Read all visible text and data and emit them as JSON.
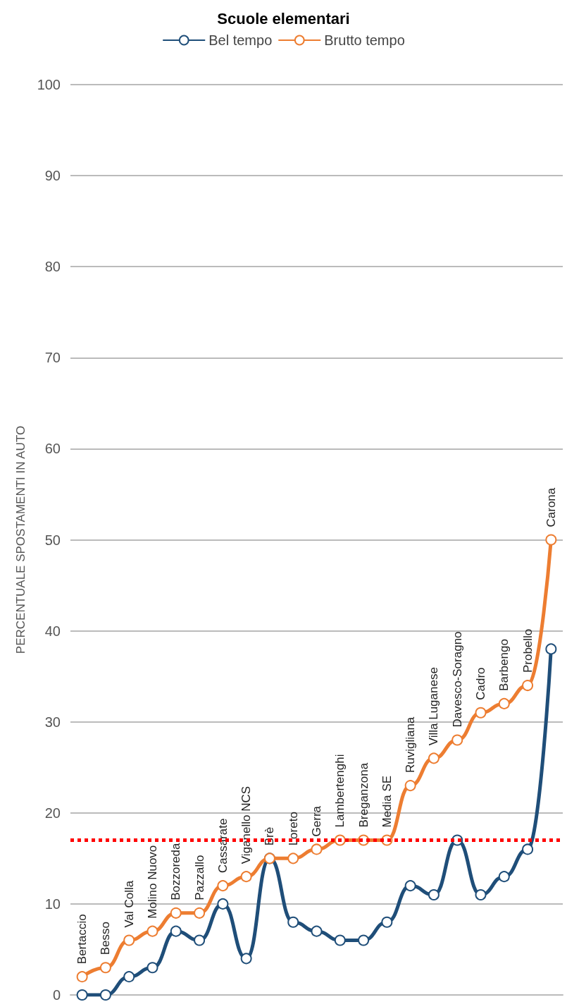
{
  "chart_data": {
    "type": "line",
    "title": "Scuole elementari",
    "ylabel": "PERCENTUALE SPOSTAMENTI IN AUTO",
    "categories": [
      "Bertaccio",
      "Besso",
      "Val Colla",
      "Molino Nuovo",
      "Bozzoreda",
      "Pazzallo",
      "Cassarate",
      "Viganello NCS",
      "Brè",
      "Loreto",
      "Gerra",
      "Lambertenghi",
      "Breganzona",
      "Media SE",
      "Ruvigliana",
      "Villa Luganese",
      "Davesco-Soragno",
      "Cadro",
      "Barbengo",
      "Probello",
      "Carona"
    ],
    "series": [
      {
        "name": "Bel tempo",
        "color": "#1f4e79",
        "values": [
          0,
          0,
          2,
          3,
          7,
          6,
          10,
          4,
          15,
          8,
          7,
          6,
          6,
          8,
          12,
          11,
          17,
          11,
          13,
          16,
          38
        ]
      },
      {
        "name": "Brutto tempo",
        "color": "#ed7d31",
        "values": [
          2,
          3,
          6,
          7,
          9,
          9,
          12,
          13,
          15,
          15,
          16,
          17,
          17,
          17,
          23,
          26,
          28,
          31,
          32,
          34,
          50
        ]
      }
    ],
    "ylim": [
      0,
      100
    ],
    "yticks": [
      0,
      10,
      20,
      30,
      40,
      50,
      60,
      70,
      80,
      90,
      100
    ],
    "ref_lines": [
      {
        "axis": "y",
        "value": 17,
        "color": "#ff0000",
        "line_style": "dotted"
      }
    ],
    "grid": "y",
    "legend": "top",
    "marker": "circle"
  }
}
